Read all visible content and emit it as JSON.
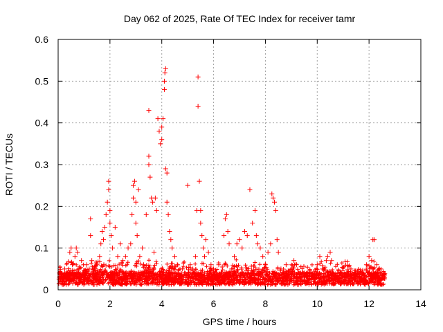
{
  "chart_data": {
    "type": "scatter",
    "title": "Day 062 of 2025, Rate Of TEC Index for receiver tamr",
    "xlabel": "GPS time / hours",
    "ylabel": "ROTI / TECUs",
    "xlim": [
      0,
      14
    ],
    "ylim": [
      0,
      0.6
    ],
    "xticks": [
      0,
      2,
      4,
      6,
      8,
      10,
      12,
      14
    ],
    "yticks": [
      0,
      0.1,
      0.2,
      0.3,
      0.4,
      0.5,
      0.6
    ],
    "xtick_labels": [
      "0",
      "2",
      "4",
      "6",
      "8",
      "10",
      "12",
      "14"
    ],
    "ytick_labels": [
      "0",
      "0.1",
      "0.2",
      "0.3",
      "0.4",
      "0.5",
      "0.6"
    ],
    "grid": true,
    "marker": "+",
    "color": "#ff0000",
    "series": [
      {
        "name": "ROTI",
        "points": [
          [
            0.05,
            0.03
          ],
          [
            0.15,
            0.02
          ],
          [
            0.25,
            0.05
          ],
          [
            0.35,
            0.04
          ],
          [
            0.45,
            0.09
          ],
          [
            0.5,
            0.1
          ],
          [
            0.55,
            0.06
          ],
          [
            0.65,
            0.08
          ],
          [
            0.7,
            0.1
          ],
          [
            0.75,
            0.09
          ],
          [
            0.8,
            0.05
          ],
          [
            0.9,
            0.07
          ],
          [
            1.0,
            0.04
          ],
          [
            1.1,
            0.06
          ],
          [
            1.2,
            0.05
          ],
          [
            1.25,
            0.17
          ],
          [
            1.25,
            0.13
          ],
          [
            1.3,
            0.07
          ],
          [
            1.4,
            0.05
          ],
          [
            1.5,
            0.06
          ],
          [
            1.6,
            0.08
          ],
          [
            1.65,
            0.11
          ],
          [
            1.7,
            0.14
          ],
          [
            1.75,
            0.12
          ],
          [
            1.8,
            0.15
          ],
          [
            1.85,
            0.18
          ],
          [
            1.9,
            0.21
          ],
          [
            1.95,
            0.26
          ],
          [
            1.95,
            0.24
          ],
          [
            2.0,
            0.19
          ],
          [
            2.0,
            0.16
          ],
          [
            2.05,
            0.13
          ],
          [
            2.1,
            0.1
          ],
          [
            2.2,
            0.15
          ],
          [
            2.3,
            0.08
          ],
          [
            2.4,
            0.11
          ],
          [
            2.5,
            0.07
          ],
          [
            2.6,
            0.08
          ],
          [
            2.7,
            0.1
          ],
          [
            2.8,
            0.11
          ],
          [
            2.85,
            0.18
          ],
          [
            2.9,
            0.25
          ],
          [
            2.9,
            0.22
          ],
          [
            2.95,
            0.26
          ],
          [
            3.0,
            0.21
          ],
          [
            3.0,
            0.16
          ],
          [
            3.05,
            0.13
          ],
          [
            3.1,
            0.24
          ],
          [
            3.15,
            0.08
          ],
          [
            3.25,
            0.1
          ],
          [
            3.3,
            0.06
          ],
          [
            3.4,
            0.18
          ],
          [
            3.5,
            0.43
          ],
          [
            3.5,
            0.32
          ],
          [
            3.5,
            0.3
          ],
          [
            3.55,
            0.27
          ],
          [
            3.6,
            0.22
          ],
          [
            3.65,
            0.21
          ],
          [
            3.7,
            0.09
          ],
          [
            3.75,
            0.22
          ],
          [
            3.8,
            0.19
          ],
          [
            3.85,
            0.41
          ],
          [
            3.9,
            0.38
          ],
          [
            3.95,
            0.35
          ],
          [
            4.0,
            0.36
          ],
          [
            4.0,
            0.39
          ],
          [
            4.05,
            0.41
          ],
          [
            4.1,
            0.48
          ],
          [
            4.1,
            0.5
          ],
          [
            4.12,
            0.52
          ],
          [
            4.15,
            0.53
          ],
          [
            4.15,
            0.29
          ],
          [
            4.2,
            0.28
          ],
          [
            4.2,
            0.21
          ],
          [
            4.25,
            0.18
          ],
          [
            4.3,
            0.14
          ],
          [
            4.35,
            0.12
          ],
          [
            4.4,
            0.1
          ],
          [
            4.5,
            0.08
          ],
          [
            4.6,
            0.06
          ],
          [
            4.8,
            0.05
          ],
          [
            5.0,
            0.25
          ],
          [
            5.1,
            0.06
          ],
          [
            5.2,
            0.05
          ],
          [
            5.3,
            0.08
          ],
          [
            5.35,
            0.19
          ],
          [
            5.4,
            0.51
          ],
          [
            5.4,
            0.44
          ],
          [
            5.45,
            0.26
          ],
          [
            5.5,
            0.19
          ],
          [
            5.5,
            0.16
          ],
          [
            5.55,
            0.13
          ],
          [
            5.6,
            0.1
          ],
          [
            5.65,
            0.08
          ],
          [
            5.7,
            0.12
          ],
          [
            5.8,
            0.09
          ],
          [
            5.9,
            0.06
          ],
          [
            6.0,
            0.05
          ],
          [
            6.2,
            0.06
          ],
          [
            6.4,
            0.13
          ],
          [
            6.45,
            0.17
          ],
          [
            6.5,
            0.18
          ],
          [
            6.55,
            0.14
          ],
          [
            6.6,
            0.11
          ],
          [
            6.7,
            0.05
          ],
          [
            6.8,
            0.08
          ],
          [
            6.9,
            0.11
          ],
          [
            7.0,
            0.12
          ],
          [
            7.1,
            0.1
          ],
          [
            7.2,
            0.14
          ],
          [
            7.3,
            0.13
          ],
          [
            7.4,
            0.24
          ],
          [
            7.5,
            0.16
          ],
          [
            7.6,
            0.19
          ],
          [
            7.65,
            0.13
          ],
          [
            7.7,
            0.11
          ],
          [
            7.8,
            0.1
          ],
          [
            7.9,
            0.08
          ],
          [
            8.0,
            0.06
          ],
          [
            8.1,
            0.09
          ],
          [
            8.2,
            0.11
          ],
          [
            8.25,
            0.23
          ],
          [
            8.3,
            0.22
          ],
          [
            8.35,
            0.21
          ],
          [
            8.4,
            0.19
          ],
          [
            8.45,
            0.12
          ],
          [
            8.5,
            0.09
          ],
          [
            8.6,
            0.05
          ],
          [
            8.7,
            0.04
          ],
          [
            8.8,
            0.06
          ],
          [
            8.9,
            0.04
          ],
          [
            9.0,
            0.05
          ],
          [
            9.1,
            0.07
          ],
          [
            9.2,
            0.06
          ],
          [
            9.3,
            0.04
          ],
          [
            9.5,
            0.03
          ],
          [
            9.7,
            0.04
          ],
          [
            9.9,
            0.03
          ],
          [
            10.0,
            0.06
          ],
          [
            10.1,
            0.08
          ],
          [
            10.2,
            0.05
          ],
          [
            10.35,
            0.07
          ],
          [
            10.4,
            0.08
          ],
          [
            10.5,
            0.09
          ],
          [
            10.55,
            0.07
          ],
          [
            10.7,
            0.03
          ],
          [
            10.9,
            0.02
          ],
          [
            11.1,
            0.03
          ],
          [
            11.3,
            0.05
          ],
          [
            11.5,
            0.04
          ],
          [
            11.7,
            0.04
          ],
          [
            11.9,
            0.06
          ],
          [
            12.0,
            0.08
          ],
          [
            12.1,
            0.07
          ],
          [
            12.15,
            0.12
          ],
          [
            12.2,
            0.12
          ],
          [
            12.3,
            0.06
          ],
          [
            12.4,
            0.05
          ],
          [
            12.5,
            0.04
          ],
          [
            12.6,
            0.03
          ]
        ]
      }
    ]
  }
}
